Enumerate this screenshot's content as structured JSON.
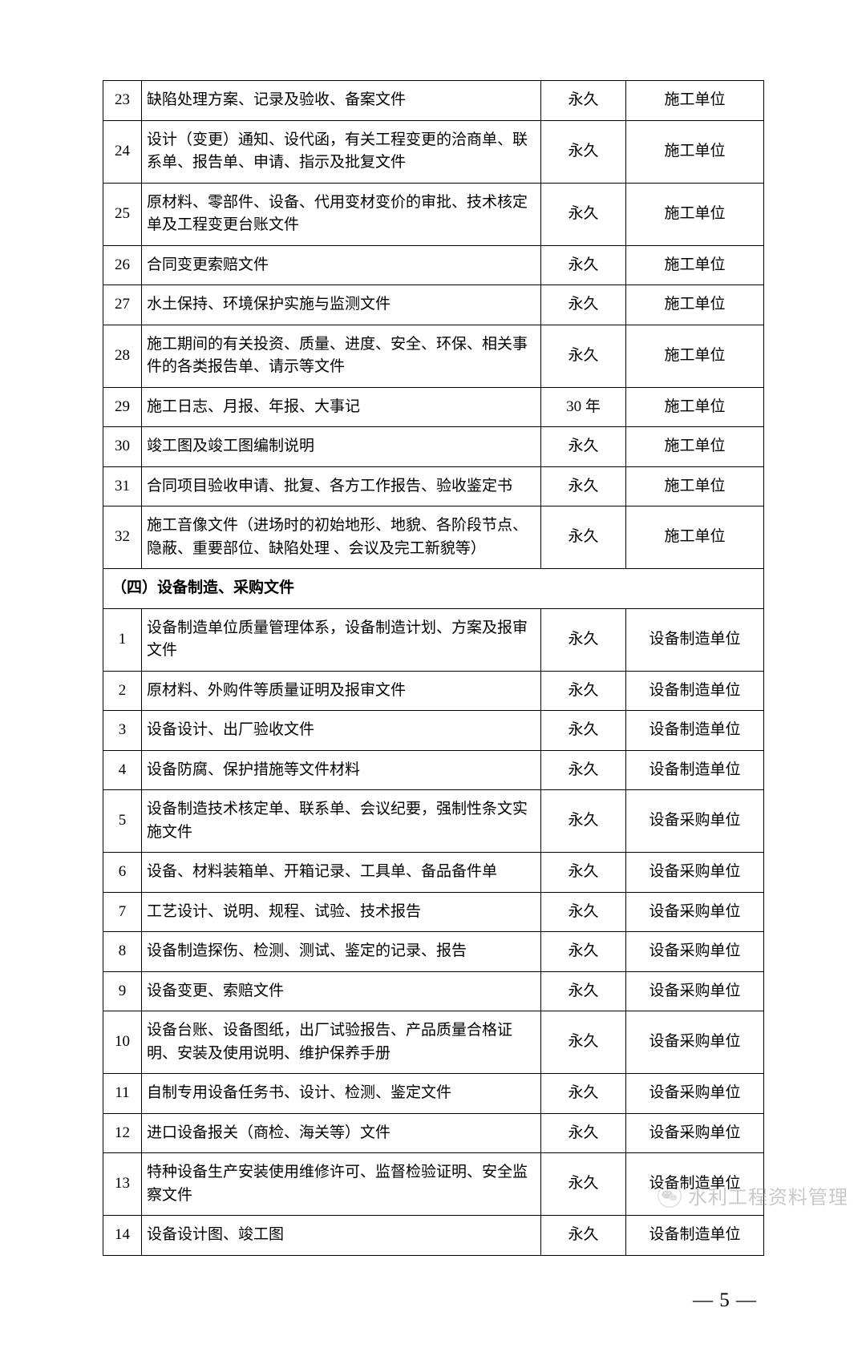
{
  "rows1": [
    {
      "n": "23",
      "desc": "缺陷处理方案、记录及验收、备案文件",
      "dur": "永久",
      "unit": "施工单位"
    },
    {
      "n": "24",
      "desc": "设计（变更）通知、设代函，有关工程变更的洽商单、联系单、报告单、申请、指示及批复文件",
      "dur": "永久",
      "unit": "施工单位"
    },
    {
      "n": "25",
      "desc": "原材料、零部件、设备、代用变材变价的审批、技术核定单及工程变更台账文件",
      "dur": "永久",
      "unit": "施工单位"
    },
    {
      "n": "26",
      "desc": "合同变更索赔文件",
      "dur": "永久",
      "unit": "施工单位"
    },
    {
      "n": "27",
      "desc": "水土保持、环境保护实施与监测文件",
      "dur": "永久",
      "unit": "施工单位"
    },
    {
      "n": "28",
      "desc": "施工期间的有关投资、质量、进度、安全、环保、相关事件的各类报告单、请示等文件",
      "dur": "永久",
      "unit": "施工单位"
    },
    {
      "n": "29",
      "desc": "施工日志、月报、年报、大事记",
      "dur": "30 年",
      "unit": "施工单位"
    },
    {
      "n": "30",
      "desc": "竣工图及竣工图编制说明",
      "dur": "永久",
      "unit": "施工单位"
    },
    {
      "n": "31",
      "desc": "合同项目验收申请、批复、各方工作报告、验收鉴定书",
      "dur": "永久",
      "unit": "施工单位"
    },
    {
      "n": "32",
      "desc": "施工音像文件（进场时的初始地形、地貌、各阶段节点、隐蔽、重要部位、缺陷处理 、会议及完工新貌等）",
      "dur": "永久",
      "unit": "施工单位"
    }
  ],
  "section_header": "（四）设备制造、采购文件",
  "rows2": [
    {
      "n": "1",
      "desc": "设备制造单位质量管理体系，设备制造计划、方案及报审文件",
      "dur": "永久",
      "unit": "设备制造单位"
    },
    {
      "n": "2",
      "desc": "原材料、外购件等质量证明及报审文件",
      "dur": "永久",
      "unit": "设备制造单位"
    },
    {
      "n": "3",
      "desc": "设备设计、出厂验收文件",
      "dur": "永久",
      "unit": "设备制造单位"
    },
    {
      "n": "4",
      "desc": "设备防腐、保护措施等文件材料",
      "dur": "永久",
      "unit": "设备制造单位"
    },
    {
      "n": "5",
      "desc": "设备制造技术核定单、联系单、会议纪要，强制性条文实施文件",
      "dur": "永久",
      "unit": "设备采购单位"
    },
    {
      "n": "6",
      "desc": "设备、材料装箱单、开箱记录、工具单、备品备件单",
      "dur": "永久",
      "unit": "设备采购单位"
    },
    {
      "n": "7",
      "desc": "工艺设计、说明、规程、试验、技术报告",
      "dur": "永久",
      "unit": "设备采购单位"
    },
    {
      "n": "8",
      "desc": "设备制造探伤、检测、测试、鉴定的记录、报告",
      "dur": "永久",
      "unit": "设备采购单位"
    },
    {
      "n": "9",
      "desc": "设备变更、索赔文件",
      "dur": "永久",
      "unit": "设备采购单位"
    },
    {
      "n": "10",
      "desc": "设备台账、设备图纸，出厂试验报告、产品质量合格证明、安装及使用说明、维护保养手册",
      "dur": "永久",
      "unit": "设备采购单位"
    },
    {
      "n": "11",
      "desc": "自制专用设备任务书、设计、检测、鉴定文件",
      "dur": "永久",
      "unit": "设备采购单位"
    },
    {
      "n": "12",
      "desc": "进口设备报关（商检、海关等）文件",
      "dur": "永久",
      "unit": "设备采购单位"
    },
    {
      "n": "13",
      "desc": "特种设备生产安装使用维修许可、监督检验证明、安全监察文件",
      "dur": "永久",
      "unit": "设备制造单位"
    },
    {
      "n": "14",
      "desc": "设备设计图、竣工图",
      "dur": "永久",
      "unit": "设备制造单位"
    }
  ],
  "page_number": "— 5 —",
  "watermark": "水利工程资料管理"
}
